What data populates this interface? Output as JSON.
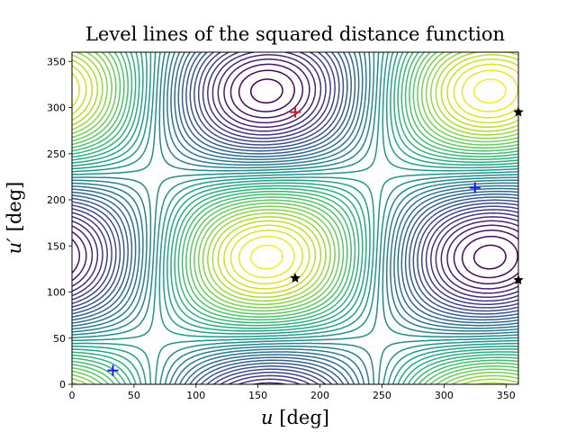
{
  "chart_data": {
    "type": "contour",
    "title": "Level lines of the squared distance function",
    "xlabel_symbol": "u",
    "xlabel_unit": "[deg]",
    "ylabel_symbol": "u′",
    "ylabel_unit": "[deg]",
    "xlim": [
      0,
      360
    ],
    "ylim": [
      0,
      360
    ],
    "xticks": [
      0,
      50,
      100,
      150,
      200,
      250,
      300,
      350
    ],
    "yticks": [
      0,
      50,
      100,
      150,
      200,
      250,
      300,
      350
    ],
    "grid": false,
    "colormap": "viridis",
    "n_levels": 40,
    "markers": [
      {
        "type": "plus",
        "color": "#e8141c",
        "x": 180,
        "y": 295
      },
      {
        "type": "plus",
        "color": "#1a1aff",
        "x": 33,
        "y": 15
      },
      {
        "type": "plus",
        "color": "#1a1aff",
        "x": 325,
        "y": 213
      },
      {
        "type": "star",
        "color": "#000000",
        "x": 180,
        "y": 115
      },
      {
        "type": "star",
        "color": "#000000",
        "x": 360,
        "y": 295
      },
      {
        "type": "star",
        "color": "#000000",
        "x": 360,
        "y": 113
      }
    ]
  }
}
